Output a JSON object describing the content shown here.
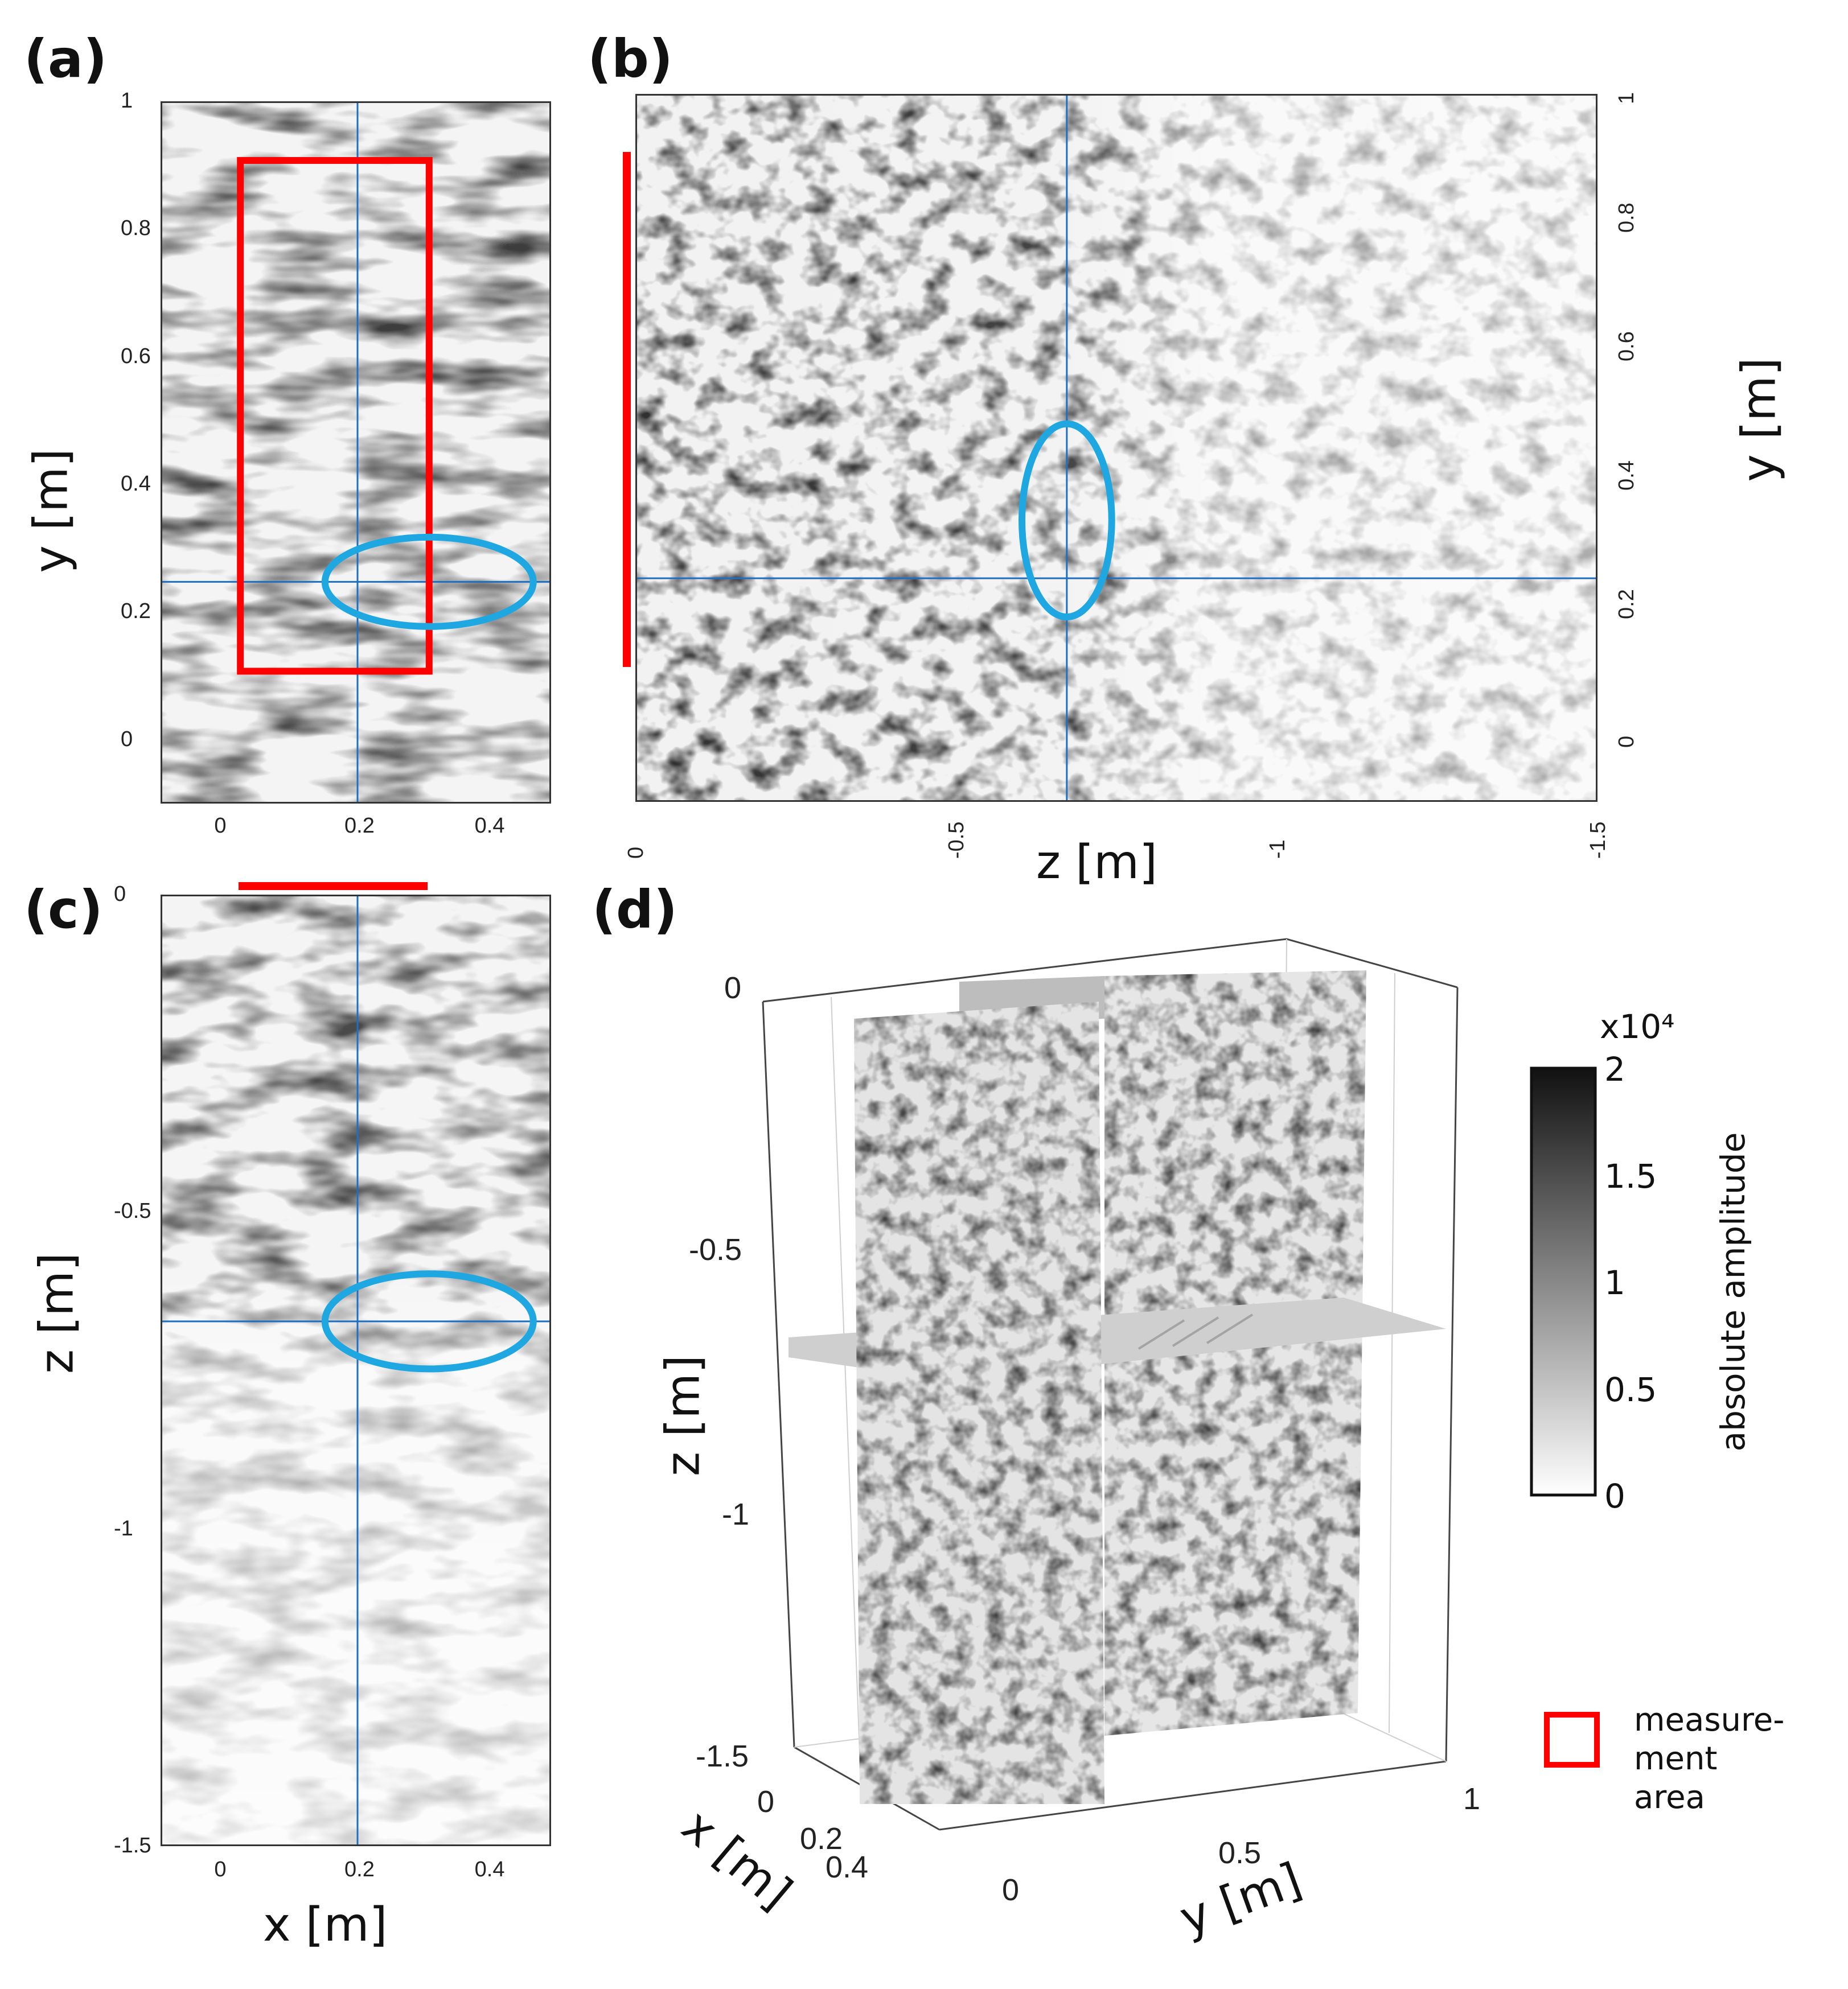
{
  "panels": {
    "a": {
      "letter": "(a)",
      "ylabel": "y [m]",
      "yticks": [
        "1",
        "0.8",
        "0.6",
        "0.4",
        "0.2",
        "0"
      ],
      "xticks": [
        "0",
        "0.2",
        "0.4"
      ]
    },
    "b": {
      "letter": "(b)",
      "ylabel": "y [m]",
      "xlabel": "z [m]",
      "yticks": [
        "1",
        "0.8",
        "0.6",
        "0.4",
        "0.2",
        "0"
      ],
      "xticks": [
        "0",
        "-0.5",
        "-1",
        "-1.5"
      ]
    },
    "c": {
      "letter": "(c)",
      "ylabel": "z [m]",
      "xlabel": "x [m]",
      "yticks": [
        "0",
        "-0.5",
        "-1",
        "-1.5"
      ],
      "xticks": [
        "0",
        "0.2",
        "0.4"
      ]
    },
    "d": {
      "letter": "(d)",
      "zlabel": "z [m]",
      "xlabel": "x [m]",
      "ylabel": "y [m]",
      "zticks": [
        "0",
        "-0.5",
        "-1",
        "-1.5"
      ],
      "xticks": [
        "0",
        "0.2",
        "0.4"
      ],
      "yticks": [
        "0",
        "0.5",
        "1"
      ]
    }
  },
  "colorbar": {
    "exponent_label": "x10⁴",
    "label": "absolute amplitude",
    "ticks": [
      "2",
      "1.5",
      "1",
      "0.5",
      "0"
    ],
    "range": [
      0,
      2
    ]
  },
  "legend": {
    "label_lines": [
      "measure-",
      "ment",
      "area"
    ],
    "color": "#ff0000"
  },
  "colors": {
    "measurement": "#ff0000",
    "marker": "#1ea7e1",
    "crosshair": "#1f6fc0"
  },
  "chart_data": [
    {
      "type": "heatmap",
      "panel": "a",
      "plane": "x-y",
      "xlim": [
        -0.1,
        0.5
      ],
      "ylim": [
        -0.1,
        1.0
      ],
      "crosshair": {
        "x": 0.2,
        "y": 0.25
      },
      "measurement_area": {
        "x": [
          0.02,
          0.31
        ],
        "y": [
          0.11,
          0.91
        ]
      },
      "highlight_ellipse": {
        "cx": 0.31,
        "cy": 0.25,
        "rx": 0.16,
        "ry": 0.07
      }
    },
    {
      "type": "heatmap",
      "panel": "b",
      "plane": "z-y",
      "xlim": [
        0,
        -1.5
      ],
      "ylim": [
        -0.1,
        1.0
      ],
      "crosshair": {
        "z": -0.67,
        "y": 0.25
      },
      "measurement_area": {
        "z": 0,
        "y": [
          0.11,
          0.91
        ]
      },
      "highlight_ellipse": {
        "cz": -0.67,
        "cy": 0.34,
        "rz": 0.07,
        "ry": 0.15
      }
    },
    {
      "type": "heatmap",
      "panel": "c",
      "plane": "x-z",
      "xlim": [
        -0.1,
        0.5
      ],
      "ylim": [
        -1.5,
        0.0
      ],
      "crosshair": {
        "x": 0.2,
        "z": -0.67
      },
      "measurement_area": {
        "x": [
          0.02,
          0.31
        ],
        "z": 0
      },
      "highlight_ellipse": {
        "cx": 0.31,
        "cz": -0.67,
        "rx": 0.16,
        "rz": 0.075
      }
    },
    {
      "type": "heatmap",
      "panel": "d",
      "view": "3D orthogonal slices",
      "xlim": [
        0,
        0.5
      ],
      "ylim": [
        0,
        1.0
      ],
      "zlim": [
        -1.5,
        0.0
      ],
      "slices": {
        "x": 0.2,
        "y": 0.25,
        "z": -0.67
      }
    }
  ]
}
